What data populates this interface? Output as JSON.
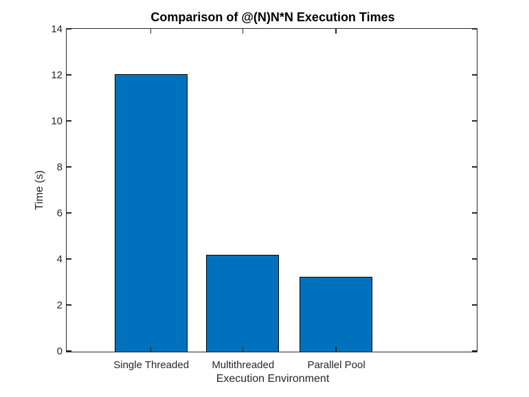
{
  "chart_data": {
    "type": "bar",
    "title": "Comparison of @(N)N*N Execution Times",
    "xlabel": "Execution Environment",
    "ylabel": "Time (s)",
    "categories": [
      "Single Threaded",
      "Multithreaded",
      "Parallel Pool"
    ],
    "values": [
      12.05,
      4.2,
      3.25
    ],
    "ylim": [
      0,
      14
    ],
    "yticks": [
      0,
      2,
      4,
      6,
      8,
      10,
      12,
      14
    ],
    "grid": false,
    "legend": null,
    "colors": {
      "bar_fill": "#0072bd",
      "bar_edge": "#000000",
      "axis": "#262626",
      "title_text": "#000000",
      "background": "#ffffff"
    }
  }
}
